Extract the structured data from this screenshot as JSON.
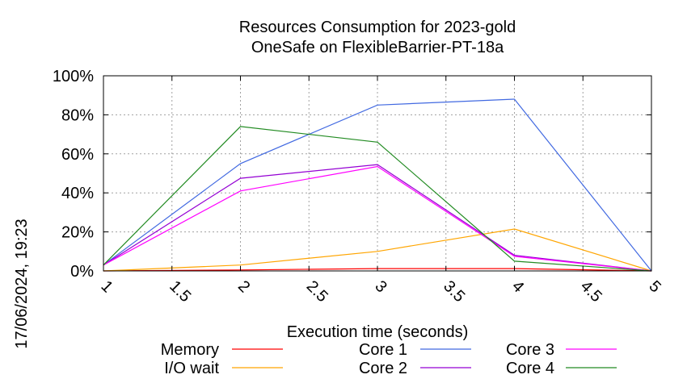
{
  "chart_data": {
    "type": "line",
    "title_lines": [
      "Resources Consumption for 2023-gold",
      "OneSafe on FlexibleBarrier-PT-18a"
    ],
    "xlabel": "Execution time (seconds)",
    "ylabel": "",
    "timestamp": "17/06/2024, 19:23",
    "xlim": [
      1,
      5
    ],
    "ylim": [
      0,
      100
    ],
    "x_ticks": [
      "1",
      "1.5",
      "2",
      "2.5",
      "3",
      "3.5",
      "4",
      "4.5",
      "5"
    ],
    "x_tick_values": [
      1,
      1.5,
      2,
      2.5,
      3,
      3.5,
      4,
      4.5,
      5
    ],
    "y_ticks": [
      "0%",
      "20%",
      "40%",
      "60%",
      "80%",
      "100%"
    ],
    "y_tick_values": [
      0,
      20,
      40,
      60,
      80,
      100
    ],
    "grid": true,
    "legend_position": "bottom",
    "x": [
      1,
      2,
      3,
      4,
      5
    ],
    "series": [
      {
        "name": "Memory",
        "color": "#ff0000",
        "values": [
          0,
          0.5,
          1.2,
          1.2,
          0
        ]
      },
      {
        "name": "I/O wait",
        "color": "#ffa500",
        "values": [
          0,
          3,
          10,
          21.5,
          0
        ]
      },
      {
        "name": "Core 1",
        "color": "#4169e1",
        "values": [
          3,
          55,
          85,
          88,
          0
        ]
      },
      {
        "name": "Core 2",
        "color": "#9400d3",
        "values": [
          3,
          47.5,
          54.5,
          8,
          0
        ]
      },
      {
        "name": "Core 3",
        "color": "#ff00ff",
        "values": [
          3,
          41,
          53.5,
          7.5,
          0
        ]
      },
      {
        "name": "Core 4",
        "color": "#228b22",
        "values": [
          3,
          74,
          66,
          5,
          0
        ]
      }
    ]
  }
}
